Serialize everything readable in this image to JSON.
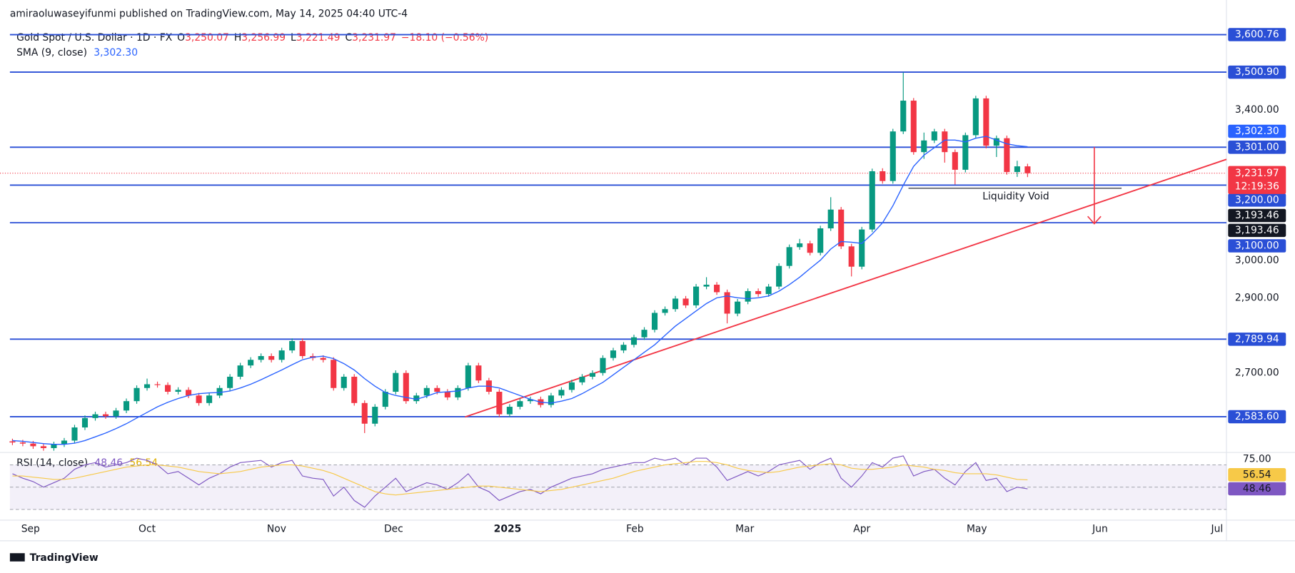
{
  "header": {
    "publisher": "amiraoluwaseyifunmi published on TradingView.com, May 14, 2025 04:40 UTC-4",
    "brand": "TradingView"
  },
  "chart_data": [
    {
      "type": "candlestick",
      "title": "Gold Spot / U.S. Dollar · 1D · FX",
      "ohlc_legend": [
        {
          "key": "O",
          "value": "3,250.07"
        },
        {
          "key": "H",
          "value": "3,256.99"
        },
        {
          "key": "L",
          "value": "3,221.49"
        },
        {
          "key": "C",
          "value": "3,231.97"
        }
      ],
      "change_label": "−18.10 (−0.56%)",
      "open": [
        2518,
        2515,
        2512,
        2505,
        2500,
        2510,
        2520,
        2555,
        2580,
        2590,
        2585,
        2600,
        2625,
        2660,
        2670,
        2668,
        2650,
        2655,
        2640,
        2620,
        2640,
        2660,
        2690,
        2720,
        2735,
        2745,
        2735,
        2760,
        2785,
        2745,
        2740,
        2735,
        2660,
        2690,
        2620,
        2565,
        2610,
        2650,
        2700,
        2625,
        2640,
        2660,
        2650,
        2635,
        2660,
        2720,
        2680,
        2650,
        2590,
        2610,
        2625,
        2630,
        2615,
        2640,
        2655,
        2675,
        2690,
        2700,
        2740,
        2760,
        2775,
        2795,
        2815,
        2860,
        2870,
        2898,
        2880,
        2930,
        2935,
        2915,
        2858,
        2890,
        2918,
        2910,
        2930,
        2985,
        3035,
        3045,
        3020,
        3085,
        3135,
        3037,
        2983,
        3082,
        3237,
        3211,
        3343,
        3425,
        3288,
        3319,
        3343,
        3288,
        3241,
        3333,
        3431,
        3305,
        3325,
        3235,
        3250.07
      ],
      "high": [
        2525,
        2522,
        2519,
        2512,
        2517,
        2527,
        2562,
        2587,
        2597,
        2597,
        2607,
        2632,
        2667,
        2685,
        2677,
        2675,
        2662,
        2662,
        2647,
        2647,
        2667,
        2697,
        2727,
        2742,
        2752,
        2752,
        2767,
        2792,
        2792,
        2752,
        2747,
        2742,
        2697,
        2697,
        2627,
        2617,
        2657,
        2707,
        2707,
        2647,
        2667,
        2667,
        2657,
        2667,
        2727,
        2727,
        2687,
        2657,
        2617,
        2632,
        2637,
        2637,
        2647,
        2662,
        2682,
        2697,
        2707,
        2747,
        2767,
        2782,
        2802,
        2822,
        2867,
        2877,
        2905,
        2905,
        2937,
        2955,
        2942,
        2922,
        2897,
        2925,
        2925,
        2937,
        2992,
        3042,
        3057,
        3052,
        3092,
        3168,
        3142,
        3044,
        3089,
        3244,
        3245,
        3350,
        3500,
        3432,
        3340,
        3350,
        3350,
        3295,
        3340,
        3438,
        3438,
        3332,
        3332,
        3265,
        3256.99
      ],
      "low": [
        2508,
        2505,
        2498,
        2493,
        2493,
        2503,
        2513,
        2548,
        2573,
        2578,
        2578,
        2593,
        2618,
        2653,
        2661,
        2643,
        2643,
        2633,
        2613,
        2613,
        2633,
        2653,
        2683,
        2713,
        2728,
        2728,
        2728,
        2753,
        2738,
        2733,
        2728,
        2653,
        2653,
        2613,
        2540,
        2558,
        2603,
        2643,
        2618,
        2618,
        2633,
        2643,
        2628,
        2628,
        2653,
        2673,
        2643,
        2583,
        2583,
        2603,
        2618,
        2608,
        2608,
        2633,
        2648,
        2668,
        2683,
        2693,
        2733,
        2753,
        2768,
        2788,
        2808,
        2853,
        2863,
        2873,
        2873,
        2923,
        2908,
        2832,
        2851,
        2883,
        2903,
        2903,
        2923,
        2978,
        3028,
        3013,
        3013,
        3078,
        3030,
        2957,
        2976,
        3075,
        3204,
        3204,
        3336,
        3281,
        3270,
        3312,
        3260,
        3202,
        3234,
        3326,
        3298,
        3275,
        3228,
        3222,
        3221.49
      ],
      "close": [
        2515,
        2512,
        2505,
        2500,
        2510,
        2520,
        2555,
        2580,
        2590,
        2585,
        2600,
        2625,
        2660,
        2670,
        2668,
        2650,
        2655,
        2640,
        2620,
        2640,
        2660,
        2690,
        2720,
        2735,
        2745,
        2735,
        2760,
        2785,
        2745,
        2740,
        2735,
        2660,
        2690,
        2620,
        2565,
        2610,
        2650,
        2700,
        2625,
        2640,
        2660,
        2650,
        2635,
        2660,
        2720,
        2680,
        2650,
        2590,
        2610,
        2625,
        2630,
        2615,
        2640,
        2655,
        2675,
        2690,
        2700,
        2740,
        2760,
        2775,
        2795,
        2815,
        2860,
        2870,
        2898,
        2880,
        2930,
        2935,
        2915,
        2858,
        2890,
        2918,
        2910,
        2930,
        2985,
        3035,
        3045,
        3020,
        3085,
        3135,
        3037,
        2983,
        3082,
        3237,
        3211,
        3343,
        3425,
        3288,
        3319,
        3343,
        3288,
        3241,
        3333,
        3431,
        3305,
        3325,
        3235,
        3250.07,
        3231.97
      ],
      "up_color": "#089981",
      "down_color": "#f23645",
      "xlim": [
        -1.2,
        117.2
      ],
      "xticks": [
        {
          "value": 1.75,
          "label": "Sep"
        },
        {
          "value": 13,
          "label": "Oct"
        },
        {
          "value": 25.5,
          "label": "Nov"
        },
        {
          "value": 36.8,
          "label": "Dec"
        },
        {
          "value": 47.8,
          "label": "2025"
        },
        {
          "value": 60.1,
          "label": "Feb"
        },
        {
          "value": 70.7,
          "label": "Mar"
        },
        {
          "value": 82,
          "label": "Apr"
        },
        {
          "value": 93.1,
          "label": "May"
        },
        {
          "value": 105,
          "label": "Jun"
        },
        {
          "value": 116.3,
          "label": "Jul"
        }
      ],
      "ylim": [
        2495,
        3616
      ],
      "yticks": [
        {
          "value": 3400,
          "label": "3,400.00"
        },
        {
          "value": 3000,
          "label": "3,000.00"
        },
        {
          "value": 2900,
          "label": "2,900.00"
        },
        {
          "value": 2700,
          "label": "2,700.00"
        }
      ],
      "levels": [
        {
          "value": 3600.76,
          "label": "3,600.76"
        },
        {
          "value": 3500.9,
          "label": "3,500.90"
        },
        {
          "value": 3301,
          "label": "3,301.00"
        },
        {
          "value": 3200,
          "label": "3,200.00"
        },
        {
          "value": 3100,
          "label": "3,100.00"
        },
        {
          "value": 2789.94,
          "label": "2,789.94"
        },
        {
          "value": 2583.6,
          "label": "2,583.60"
        }
      ],
      "level_color": "#2a4fd6",
      "sma": {
        "name": "SMA (9, close)",
        "label": "3,302.30",
        "color": "#2962ff",
        "values": [
          2520,
          2518,
          2515,
          2512,
          2510,
          2510,
          2513,
          2520,
          2530,
          2540,
          2552,
          2565,
          2580,
          2595,
          2610,
          2622,
          2632,
          2640,
          2645,
          2647,
          2648,
          2652,
          2660,
          2670,
          2682,
          2695,
          2708,
          2722,
          2735,
          2742,
          2745,
          2738,
          2725,
          2708,
          2685,
          2665,
          2648,
          2640,
          2635,
          2630,
          2638,
          2648,
          2650,
          2652,
          2660,
          2665,
          2665,
          2660,
          2650,
          2640,
          2630,
          2622,
          2620,
          2625,
          2632,
          2645,
          2660,
          2675,
          2695,
          2715,
          2735,
          2755,
          2775,
          2800,
          2825,
          2845,
          2865,
          2885,
          2900,
          2905,
          2900,
          2898,
          2900,
          2905,
          2918,
          2935,
          2955,
          2978,
          3000,
          3030,
          3050,
          3048,
          3045,
          3070,
          3100,
          3145,
          3200,
          3250,
          3280,
          3300,
          3320,
          3320,
          3315,
          3325,
          3330,
          3320,
          3310,
          3305,
          3302.3
        ]
      },
      "last_price": {
        "label": "3,231.97",
        "countdown": "12:19:36"
      },
      "trend_price_labels": [
        "3,193.46",
        "3,193.46"
      ],
      "annotation": "Liquidity Void",
      "trend_color": "#f23645"
    },
    {
      "type": "line",
      "title": "RSI (14, close)",
      "series": [
        {
          "color": "#7e57c2",
          "values": [
            62,
            58,
            55,
            50,
            54,
            58,
            66,
            70,
            72,
            68,
            70,
            72,
            76,
            74,
            70,
            62,
            64,
            58,
            52,
            58,
            62,
            68,
            72,
            73,
            74,
            68,
            72,
            74,
            60,
            58,
            57,
            42,
            50,
            38,
            32,
            42,
            50,
            58,
            46,
            50,
            54,
            52,
            48,
            54,
            62,
            50,
            46,
            38,
            42,
            46,
            48,
            44,
            50,
            54,
            58,
            60,
            62,
            66,
            68,
            70,
            72,
            72,
            76,
            74,
            76,
            70,
            76,
            76,
            68,
            56,
            60,
            64,
            60,
            64,
            70,
            72,
            74,
            66,
            72,
            76,
            58,
            50,
            60,
            72,
            68,
            76,
            78,
            60,
            64,
            66,
            58,
            52,
            64,
            72,
            56,
            58,
            46,
            50,
            48.46
          ]
        },
        {
          "color": "#f7c948",
          "values": [
            60,
            60,
            59,
            58,
            57,
            57,
            58,
            60,
            62,
            64,
            66,
            68,
            69,
            70,
            70,
            69,
            68,
            66,
            64,
            63,
            62,
            63,
            64,
            66,
            68,
            69,
            70,
            70,
            69,
            67,
            65,
            62,
            58,
            54,
            50,
            46,
            44,
            43,
            44,
            45,
            46,
            47,
            48,
            49,
            50,
            51,
            51,
            50,
            49,
            48,
            47,
            46,
            47,
            48,
            50,
            52,
            54,
            56,
            58,
            61,
            64,
            66,
            68,
            70,
            71,
            72,
            73,
            73,
            72,
            70,
            67,
            65,
            64,
            63,
            64,
            66,
            68,
            69,
            70,
            71,
            70,
            67,
            66,
            66,
            67,
            68,
            70,
            69,
            68,
            66,
            65,
            63,
            62,
            62,
            62,
            61,
            59,
            57,
            56.54
          ]
        }
      ],
      "ylim": [
        21.9,
        81.1
      ],
      "yticks": [
        {
          "value": 75,
          "label": "75.00"
        }
      ],
      "levels": [
        70,
        50,
        30
      ]
    }
  ]
}
